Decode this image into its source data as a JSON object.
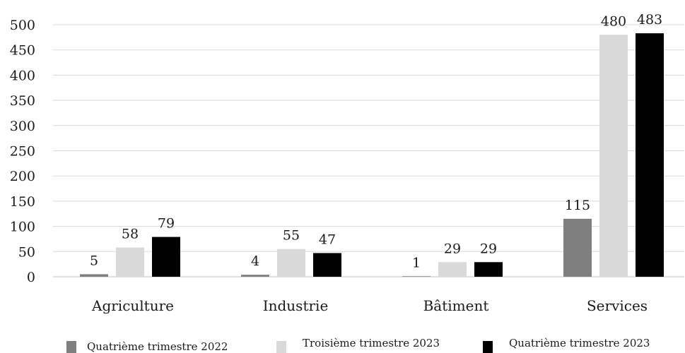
{
  "chart_data": {
    "type": "bar",
    "categories": [
      "Agriculture",
      "Industrie",
      "Bâtiment",
      "Services"
    ],
    "series": [
      {
        "name": "Quatrième trimestre 2022",
        "values": [
          5,
          4,
          1,
          115
        ],
        "color": "#7f7f7f"
      },
      {
        "name": "Troisième trimestre 2023",
        "values": [
          58,
          55,
          29,
          480
        ],
        "color": "#d9d9d9"
      },
      {
        "name": "Quatrième trimestre 2023",
        "values": [
          79,
          47,
          29,
          483
        ],
        "color": "#000000"
      }
    ],
    "ylim": [
      0,
      500
    ],
    "yticks": [
      0,
      50,
      100,
      150,
      200,
      250,
      300,
      350,
      400,
      450,
      500
    ],
    "grid": true,
    "legend_position": "bottom",
    "data_labels": true
  }
}
